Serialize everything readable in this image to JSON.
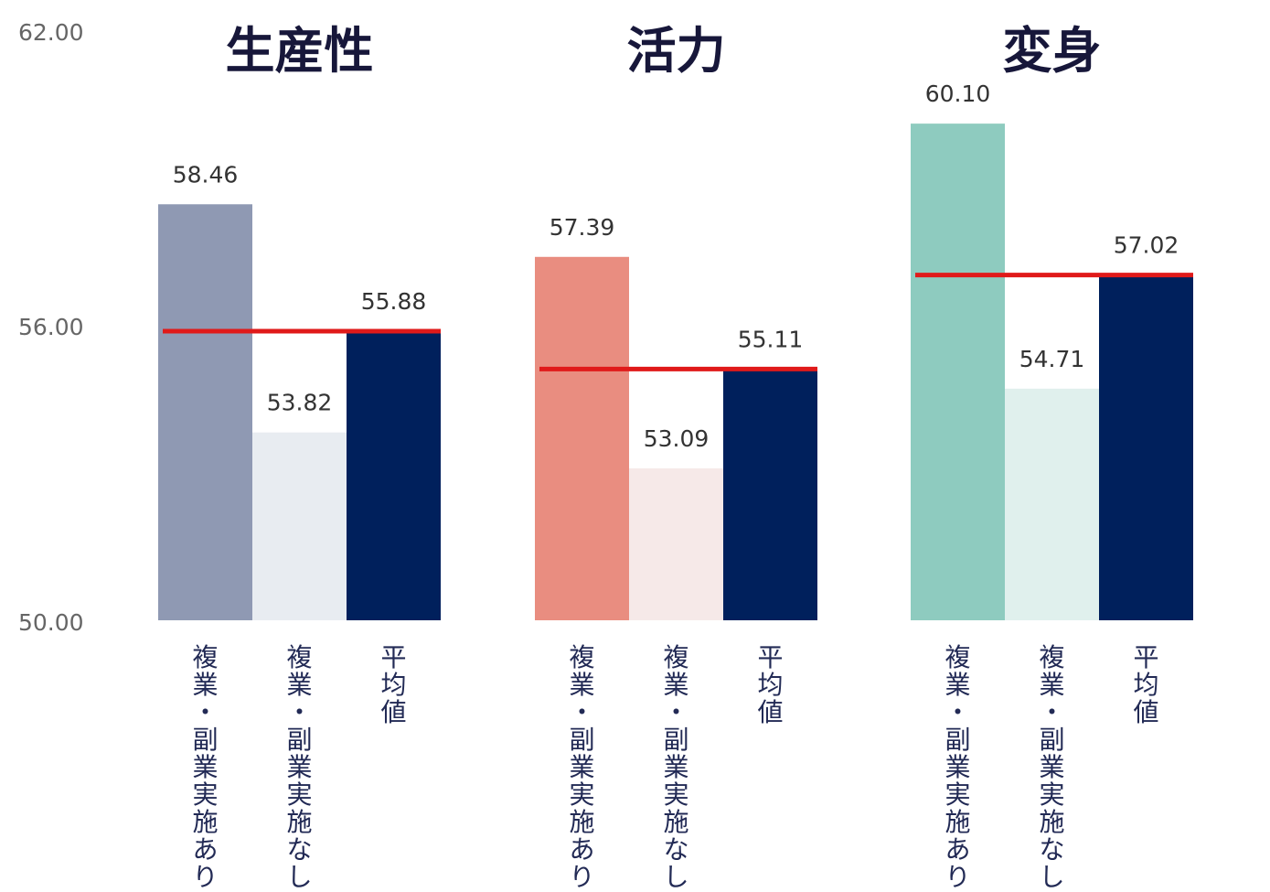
{
  "chart_data": {
    "type": "bar",
    "y_ticks": [
      "62.00",
      "56.00",
      "50.00"
    ],
    "ylim": [
      50,
      62
    ],
    "grid": false,
    "categories": [
      "複業・副業実施あり",
      "複業・副業実施なし",
      "平均値"
    ],
    "groups": [
      {
        "title": "生産性",
        "values": [
          58.46,
          53.82,
          55.88
        ],
        "labels": [
          "58.46",
          "53.82",
          "55.88"
        ],
        "average": 55.88,
        "colors": [
          "#8f99b3",
          "#e8ecf1",
          "#00205c"
        ]
      },
      {
        "title": "活力",
        "values": [
          57.39,
          53.09,
          55.11
        ],
        "labels": [
          "57.39",
          "53.09",
          "55.11"
        ],
        "average": 55.11,
        "colors": [
          "#e98d80",
          "#f6e9e8",
          "#00205c"
        ]
      },
      {
        "title": "変身",
        "values": [
          60.1,
          54.71,
          57.02
        ],
        "labels": [
          "60.10",
          "54.71",
          "57.02"
        ],
        "average": 57.02,
        "colors": [
          "#8ecbbf",
          "#e0f0ed",
          "#00205c"
        ]
      }
    ],
    "average_line_color": "#e01a1a"
  }
}
